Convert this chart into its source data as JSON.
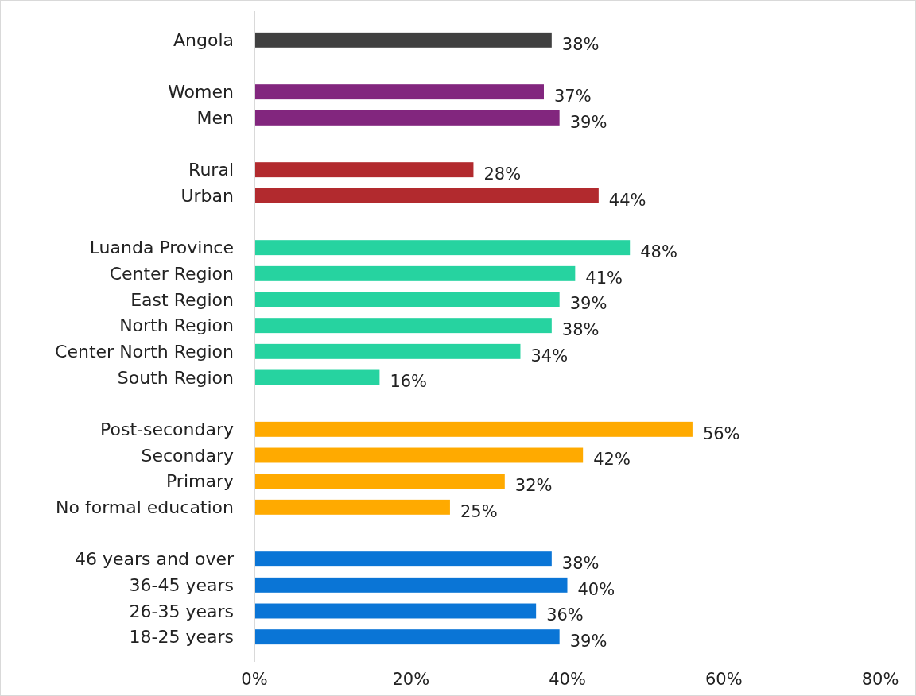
{
  "chart_data": {
    "type": "bar",
    "orientation": "horizontal",
    "categories": [
      "Angola",
      null,
      "Women",
      "Men",
      null,
      "Rural",
      "Urban",
      null,
      "Luanda Province",
      "Center Region",
      "East Region",
      "North Region",
      "Center North Region",
      "South Region",
      null,
      "Post-secondary",
      "Secondary",
      "Primary",
      "No formal education",
      null,
      "46 years and over",
      "36-45 years",
      "26-35 years",
      "18-25 years"
    ],
    "values": [
      38,
      null,
      37,
      39,
      null,
      28,
      44,
      null,
      48,
      41,
      39,
      38,
      34,
      16,
      null,
      56,
      42,
      32,
      25,
      null,
      38,
      40,
      36,
      39
    ],
    "colors": [
      "#404040",
      null,
      "#82267e",
      "#82267e",
      null,
      "#b22a2e",
      "#b22a2e",
      null,
      "#26d3a0",
      "#26d3a0",
      "#26d3a0",
      "#26d3a0",
      "#26d3a0",
      "#26d3a0",
      null,
      "#ffaa00",
      "#ffaa00",
      "#ffaa00",
      "#ffaa00",
      null,
      "#0a75d6",
      "#0a75d6",
      "#0a75d6",
      "#0a75d6"
    ],
    "xlim": [
      0,
      80
    ],
    "xticks": [
      {
        "value": 0,
        "label": "0%"
      },
      {
        "value": 20,
        "label": "20%"
      },
      {
        "value": 40,
        "label": "40%"
      },
      {
        "value": 60,
        "label": "60%"
      },
      {
        "value": 80,
        "label": "80%"
      }
    ],
    "value_labels": [
      "38%",
      null,
      "37%",
      "39%",
      null,
      "28%",
      "44%",
      null,
      "48%",
      "41%",
      "39%",
      "38%",
      "34%",
      "16%",
      null,
      "56%",
      "42%",
      "32%",
      "25%",
      null,
      "38%",
      "40%",
      "36%",
      "39%"
    ],
    "grid": false
  }
}
